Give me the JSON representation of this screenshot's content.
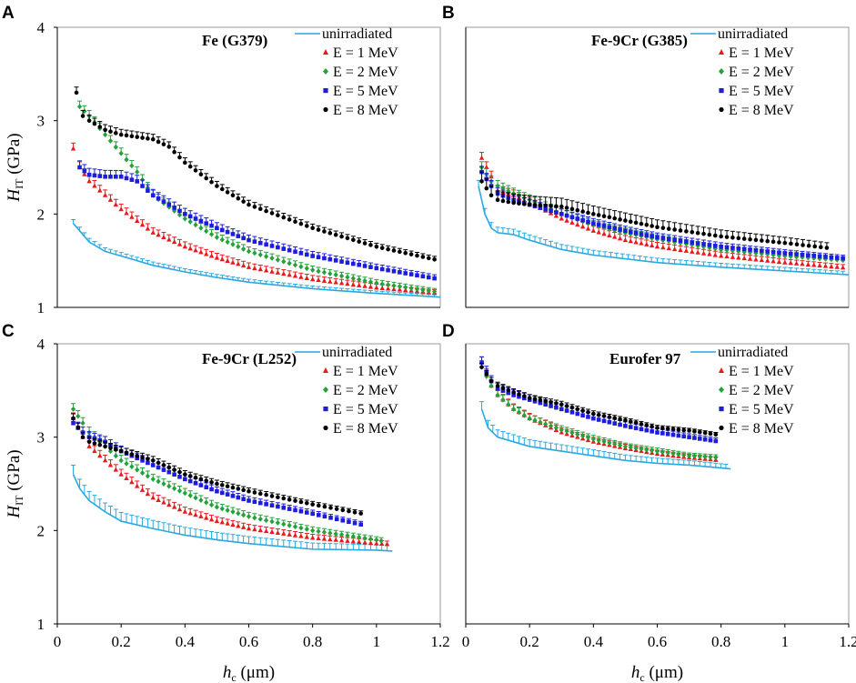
{
  "chart_data": {
    "type": "scatter",
    "shared": {
      "ylabel_main": "H",
      "ylabel_sub": "IT",
      "ylabel_unit": " (GPa)",
      "xlabel_main": "h",
      "xlabel_sub": "c",
      "xlabel_unit": " (μm)",
      "series_names": [
        "unirradiated",
        "E = 1 MeV",
        "E = 2 MeV",
        "E = 5 MeV",
        "E = 8 MeV"
      ],
      "series_colors": [
        "#2aa8e0",
        "#e8191b",
        "#23a23a",
        "#1c1cdc",
        "#000000"
      ],
      "series_markers": [
        "line",
        "triangle",
        "diamond",
        "square",
        "circle"
      ]
    },
    "panels": [
      {
        "letter": "A",
        "title": "Fe (G379)",
        "xlim": [
          0,
          1.2
        ],
        "ylim": [
          1,
          4
        ],
        "xticks": [
          "0",
          "0.2",
          "0.4",
          "0.6",
          "0.8",
          "1",
          "1.2"
        ],
        "yticks": [
          "1",
          "2",
          "3",
          "4"
        ],
        "series": [
          {
            "name": "unirradiated",
            "x": [
              0.05,
              0.07,
              0.1,
              0.15,
              0.2,
              0.3,
              0.4,
              0.5,
              0.6,
              0.8,
              1.0,
              1.2
            ],
            "y": [
              1.9,
              1.82,
              1.7,
              1.6,
              1.55,
              1.45,
              1.38,
              1.32,
              1.27,
              1.2,
              1.15,
              1.11
            ],
            "err": 0.04
          },
          {
            "name": "E = 1 MeV",
            "x": [
              0.05,
              0.07,
              0.1,
              0.15,
              0.2,
              0.3,
              0.4,
              0.5,
              0.6,
              0.8,
              1.0,
              1.2
            ],
            "y": [
              2.7,
              2.5,
              2.35,
              2.2,
              2.05,
              1.8,
              1.65,
              1.53,
              1.43,
              1.3,
              1.21,
              1.15
            ],
            "err": 0.06
          },
          {
            "name": "E = 2 MeV",
            "x": [
              0.07,
              0.1,
              0.15,
              0.2,
              0.25,
              0.3,
              0.4,
              0.5,
              0.6,
              0.8,
              1.0,
              1.2
            ],
            "y": [
              3.15,
              3.05,
              2.85,
              2.65,
              2.45,
              2.2,
              1.95,
              1.75,
              1.6,
              1.4,
              1.26,
              1.16
            ],
            "err": 0.06
          },
          {
            "name": "E = 5 MeV",
            "x": [
              0.07,
              0.1,
              0.15,
              0.2,
              0.25,
              0.3,
              0.4,
              0.5,
              0.6,
              0.8,
              1.0,
              1.2
            ],
            "y": [
              2.5,
              2.42,
              2.4,
              2.4,
              2.35,
              2.2,
              2.0,
              1.85,
              1.72,
              1.55,
              1.42,
              1.3
            ],
            "err": 0.07
          },
          {
            "name": "E = 8 MeV",
            "x": [
              0.06,
              0.08,
              0.1,
              0.15,
              0.2,
              0.3,
              0.35,
              0.4,
              0.5,
              0.6,
              0.8,
              1.0,
              1.2
            ],
            "y": [
              3.3,
              3.05,
              3.0,
              2.9,
              2.85,
              2.8,
              2.72,
              2.55,
              2.3,
              2.1,
              1.85,
              1.65,
              1.5
            ],
            "err": 0.06
          }
        ]
      },
      {
        "letter": "B",
        "title": "Fe-9Cr (G385)",
        "xlim": [
          0,
          1.2
        ],
        "ylim": [
          1,
          4
        ],
        "xticks": [
          "0",
          "0.2",
          "0.4",
          "0.6",
          "0.8",
          "1",
          "1.2"
        ],
        "yticks": [
          "1",
          "2",
          "3",
          "4"
        ],
        "series": [
          {
            "name": "unirradiated",
            "x": [
              0.04,
              0.06,
              0.08,
              0.1,
              0.15,
              0.2,
              0.3,
              0.4,
              0.6,
              0.8,
              1.0,
              1.2
            ],
            "y": [
              2.3,
              2.0,
              1.85,
              1.8,
              1.78,
              1.72,
              1.62,
              1.56,
              1.48,
              1.43,
              1.39,
              1.35
            ],
            "err": 0.06
          },
          {
            "name": "E = 1 MeV",
            "x": [
              0.05,
              0.08,
              0.1,
              0.15,
              0.2,
              0.3,
              0.4,
              0.5,
              0.6,
              0.8,
              1.0,
              1.2
            ],
            "y": [
              2.6,
              2.4,
              2.25,
              2.2,
              2.12,
              1.95,
              1.82,
              1.72,
              1.65,
              1.55,
              1.48,
              1.42
            ],
            "err": 0.06
          },
          {
            "name": "E = 2 MeV",
            "x": [
              0.05,
              0.08,
              0.1,
              0.15,
              0.2,
              0.3,
              0.4,
              0.5,
              0.6,
              0.8,
              1.0,
              1.2
            ],
            "y": [
              2.5,
              2.35,
              2.3,
              2.22,
              2.15,
              2.0,
              1.88,
              1.8,
              1.73,
              1.62,
              1.55,
              1.5
            ],
            "err": 0.06
          },
          {
            "name": "E = 5 MeV",
            "x": [
              0.05,
              0.08,
              0.1,
              0.15,
              0.2,
              0.3,
              0.4,
              0.5,
              0.6,
              0.8,
              1.0,
              1.2
            ],
            "y": [
              2.45,
              2.3,
              2.22,
              2.15,
              2.1,
              2.0,
              1.9,
              1.82,
              1.75,
              1.65,
              1.58,
              1.52
            ],
            "err": 0.06
          },
          {
            "name": "E = 8 MeV",
            "x": [
              0.05,
              0.08,
              0.1,
              0.15,
              0.2,
              0.3,
              0.4,
              0.5,
              0.6,
              0.8,
              1.0,
              1.15
            ],
            "y": [
              2.35,
              2.2,
              2.15,
              2.12,
              2.1,
              2.08,
              2.0,
              1.93,
              1.86,
              1.76,
              1.69,
              1.63
            ],
            "err": 0.1
          }
        ]
      },
      {
        "letter": "C",
        "title": "Fe-9Cr (L252)",
        "xlim": [
          0,
          1.2
        ],
        "ylim": [
          1,
          4
        ],
        "xticks": [
          "0",
          "0.2",
          "0.4",
          "0.6",
          "0.8",
          "1",
          "1.2"
        ],
        "yticks": [
          "1",
          "2",
          "3",
          "4"
        ],
        "series": [
          {
            "name": "unirradiated",
            "x": [
              0.05,
              0.07,
              0.1,
              0.15,
              0.2,
              0.3,
              0.4,
              0.5,
              0.6,
              0.8,
              1.0,
              1.05
            ],
            "y": [
              2.6,
              2.45,
              2.32,
              2.2,
              2.1,
              2.02,
              1.95,
              1.9,
              1.86,
              1.8,
              1.79,
              1.78
            ],
            "err": 0.1
          },
          {
            "name": "E = 1 MeV",
            "x": [
              0.05,
              0.08,
              0.1,
              0.15,
              0.2,
              0.3,
              0.4,
              0.5,
              0.6,
              0.8,
              1.0,
              1.05
            ],
            "y": [
              3.2,
              3.0,
              2.9,
              2.75,
              2.6,
              2.35,
              2.2,
              2.1,
              2.02,
              1.92,
              1.86,
              1.85
            ],
            "err": 0.06
          },
          {
            "name": "E = 2 MeV",
            "x": [
              0.05,
              0.08,
              0.1,
              0.15,
              0.2,
              0.3,
              0.4,
              0.5,
              0.6,
              0.8,
              1.0,
              1.03
            ],
            "y": [
              3.3,
              3.15,
              3.05,
              2.9,
              2.75,
              2.55,
              2.4,
              2.25,
              2.15,
              2.0,
              1.9,
              1.88
            ],
            "err": 0.06
          },
          {
            "name": "E = 5 MeV",
            "x": [
              0.05,
              0.08,
              0.1,
              0.15,
              0.2,
              0.3,
              0.4,
              0.5,
              0.6,
              0.8,
              0.97
            ],
            "y": [
              3.15,
              3.05,
              3.0,
              2.95,
              2.85,
              2.7,
              2.55,
              2.42,
              2.32,
              2.18,
              2.05
            ],
            "err": 0.06
          },
          {
            "name": "E = 8 MeV",
            "x": [
              0.05,
              0.08,
              0.1,
              0.15,
              0.2,
              0.3,
              0.4,
              0.5,
              0.6,
              0.8,
              0.97
            ],
            "y": [
              3.2,
              3.0,
              2.95,
              2.9,
              2.85,
              2.75,
              2.6,
              2.5,
              2.42,
              2.28,
              2.17
            ],
            "err": 0.05
          }
        ]
      },
      {
        "letter": "D",
        "title": "Eurofer 97",
        "xlim": [
          0,
          1.2
        ],
        "ylim": [
          1,
          4
        ],
        "xticks": [
          "0",
          "0.2",
          "0.4",
          "0.6",
          "0.8",
          "1",
          "1.2"
        ],
        "yticks": [
          "1",
          "2",
          "3",
          "4"
        ],
        "series": [
          {
            "name": "unirradiated",
            "x": [
              0.05,
              0.07,
              0.1,
              0.15,
              0.2,
              0.3,
              0.4,
              0.5,
              0.6,
              0.7,
              0.8,
              0.83
            ],
            "y": [
              3.3,
              3.1,
              3.0,
              2.95,
              2.9,
              2.85,
              2.8,
              2.75,
              2.72,
              2.7,
              2.67,
              2.66
            ],
            "err": 0.08
          },
          {
            "name": "E = 1 MeV",
            "x": [
              0.05,
              0.08,
              0.1,
              0.15,
              0.2,
              0.3,
              0.4,
              0.5,
              0.6,
              0.7,
              0.8
            ],
            "y": [
              3.8,
              3.55,
              3.45,
              3.3,
              3.2,
              3.05,
              2.95,
              2.88,
              2.82,
              2.78,
              2.75
            ],
            "err": 0.06
          },
          {
            "name": "E = 2 MeV",
            "x": [
              0.05,
              0.08,
              0.1,
              0.15,
              0.2,
              0.3,
              0.4,
              0.5,
              0.6,
              0.7,
              0.8
            ],
            "y": [
              3.75,
              3.55,
              3.45,
              3.3,
              3.2,
              3.08,
              2.98,
              2.9,
              2.85,
              2.8,
              2.78
            ],
            "err": 0.05
          },
          {
            "name": "E = 5 MeV",
            "x": [
              0.05,
              0.08,
              0.1,
              0.15,
              0.2,
              0.3,
              0.4,
              0.5,
              0.6,
              0.7,
              0.8
            ],
            "y": [
              3.8,
              3.6,
              3.52,
              3.45,
              3.4,
              3.3,
              3.2,
              3.12,
              3.05,
              3.0,
              2.95
            ],
            "err": 0.06
          },
          {
            "name": "E = 8 MeV",
            "x": [
              0.05,
              0.08,
              0.1,
              0.15,
              0.2,
              0.3,
              0.4,
              0.5,
              0.6,
              0.7,
              0.8
            ],
            "y": [
              3.75,
              3.6,
              3.55,
              3.48,
              3.42,
              3.35,
              3.25,
              3.18,
              3.1,
              3.07,
              3.02
            ],
            "err": 0.04
          }
        ]
      }
    ]
  }
}
